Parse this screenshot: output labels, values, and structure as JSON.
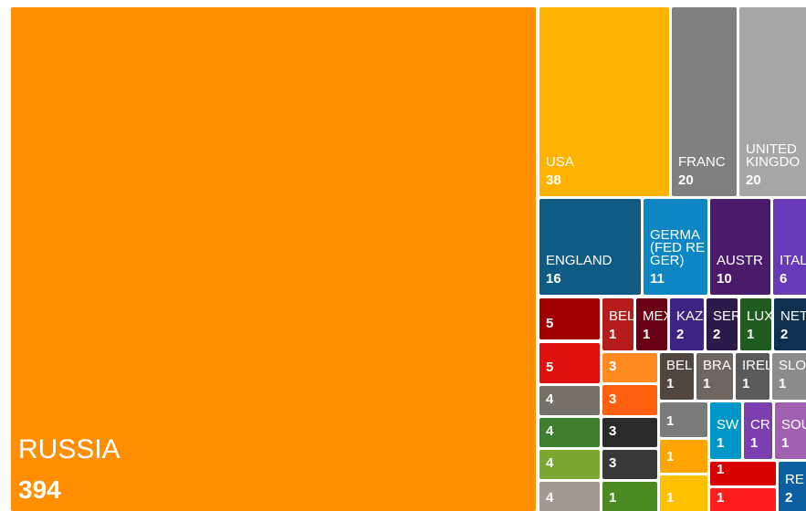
{
  "chart_data": {
    "type": "treemap",
    "categories": [
      "RUSSIA",
      "USA",
      "FRANC",
      "UNITED\nKINGDO",
      "ENGLAND",
      "GERMA\n(FED RE\nGER)",
      "AUSTR",
      "ITAL",
      null,
      null,
      null,
      null,
      null,
      null,
      "BEL",
      "MEX",
      "KAZ",
      "SER",
      "LUX",
      "NET",
      null,
      null,
      null,
      null,
      null,
      "BEL",
      "BRA",
      "IREL",
      "SLO",
      null,
      null,
      null,
      "SW",
      "CR",
      "SOU",
      null,
      null,
      "RE"
    ],
    "values": [
      394,
      38,
      20,
      20,
      16,
      11,
      10,
      6,
      5,
      5,
      4,
      4,
      4,
      4,
      1,
      1,
      2,
      2,
      1,
      2,
      3,
      3,
      3,
      3,
      1,
      1,
      1,
      1,
      1,
      1,
      1,
      1,
      1,
      1,
      1,
      1,
      1,
      2
    ],
    "colors": [
      "#ff8f00",
      "#ffb300",
      "#808080",
      "#a6a6a6",
      "#0f5b84",
      "#0e86c4",
      "#4b1b6b",
      "#673ab7",
      "#a00000",
      "#e01010",
      "#757068",
      "#3e7f2e",
      "#7ca832",
      "#a09a90",
      "#b71c1c",
      "#6a0014",
      "#3c2484",
      "#2c1a4a",
      "#1f5c1f",
      "#0d3050",
      "#ff8a1f",
      "#ff6010",
      "#2a2a2a",
      "#383838",
      "#4a8a20",
      "#50463e",
      "#6e6660",
      "#5a5a5a",
      "#8c8c8c",
      "#7a7a7a",
      "#ffa500",
      "#ffc000",
      "#0097c8",
      "#7b3fb0",
      "#a060b0",
      "#d80000",
      "#ff1e1e",
      "#0b5fa0"
    ]
  }
}
